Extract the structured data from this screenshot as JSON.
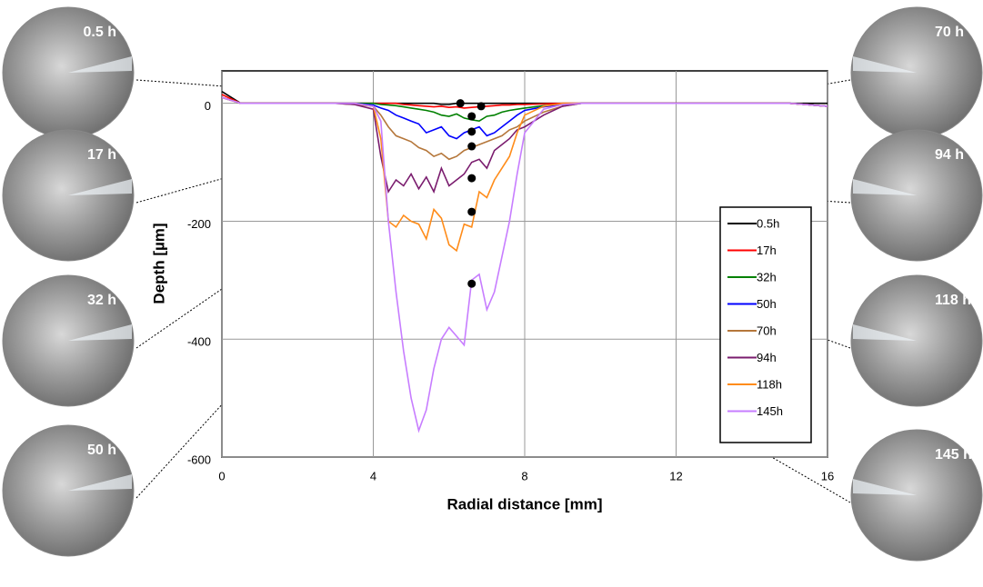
{
  "chart_data": {
    "type": "line",
    "xlabel": "Radial distance [mm]",
    "ylabel": "Depth [µm]",
    "xlim": [
      0,
      16
    ],
    "xticks": [
      0,
      4,
      8,
      12,
      16
    ],
    "ylim": [
      -600,
      55
    ],
    "yticks": [
      -600,
      -400,
      -200,
      0
    ],
    "grid": true,
    "legend": "right",
    "x": [
      0,
      0.5,
      1,
      2,
      3,
      3.5,
      4,
      4.2,
      4.4,
      4.6,
      4.8,
      5,
      5.2,
      5.4,
      5.6,
      5.8,
      6,
      6.2,
      6.4,
      6.6,
      6.8,
      7,
      7.2,
      7.4,
      7.6,
      7.8,
      8,
      8.5,
      9,
      9.5,
      10,
      11,
      12,
      13,
      14,
      15,
      16
    ],
    "series": [
      {
        "name": "0.5h",
        "color": "#000000",
        "values": [
          20,
          0,
          0,
          0,
          0,
          0,
          0,
          0,
          0,
          0,
          0,
          0,
          0,
          0,
          0,
          -2,
          -2,
          0,
          0,
          0,
          0,
          0,
          0,
          0,
          0,
          0,
          0,
          0,
          0,
          0,
          0,
          0,
          0,
          0,
          0,
          0,
          0
        ]
      },
      {
        "name": "17h",
        "color": "#ff0000",
        "values": [
          15,
          0,
          0,
          0,
          0,
          0,
          0,
          0,
          0,
          0,
          -2,
          -3,
          -4,
          -5,
          -6,
          -5,
          -7,
          -6,
          -8,
          -7,
          -6,
          -5,
          -4,
          -3,
          -3,
          -2,
          -2,
          -1,
          0,
          0,
          0,
          0,
          0,
          0,
          0,
          0,
          -5
        ]
      },
      {
        "name": "32h",
        "color": "#008000",
        "values": [
          10,
          0,
          0,
          0,
          0,
          0,
          0,
          -2,
          -3,
          -4,
          -6,
          -8,
          -10,
          -12,
          -15,
          -20,
          -22,
          -18,
          -25,
          -28,
          -30,
          -22,
          -20,
          -15,
          -12,
          -10,
          -8,
          -4,
          -2,
          0,
          0,
          0,
          0,
          0,
          0,
          0,
          -5
        ]
      },
      {
        "name": "50h",
        "color": "#0000ff",
        "values": [
          10,
          0,
          0,
          0,
          0,
          0,
          -3,
          -8,
          -12,
          -20,
          -25,
          -30,
          -35,
          -50,
          -45,
          -40,
          -55,
          -60,
          -50,
          -45,
          -40,
          -55,
          -50,
          -40,
          -30,
          -20,
          -12,
          -6,
          -2,
          0,
          0,
          0,
          0,
          0,
          0,
          0,
          -5
        ]
      },
      {
        "name": "70h",
        "color": "#b5773b",
        "values": [
          10,
          0,
          0,
          0,
          0,
          -2,
          -5,
          -20,
          -40,
          -55,
          -60,
          -65,
          -75,
          -80,
          -90,
          -85,
          -95,
          -90,
          -80,
          -75,
          -70,
          -65,
          -60,
          -55,
          -45,
          -40,
          -30,
          -15,
          -5,
          0,
          0,
          0,
          0,
          0,
          0,
          0,
          -5
        ]
      },
      {
        "name": "94h",
        "color": "#7a1c6e",
        "values": [
          10,
          0,
          0,
          0,
          0,
          -2,
          -10,
          -90,
          -150,
          -130,
          -140,
          -120,
          -145,
          -125,
          -150,
          -110,
          -140,
          -130,
          -120,
          -100,
          -95,
          -110,
          -80,
          -70,
          -60,
          -45,
          -40,
          -20,
          -5,
          0,
          0,
          0,
          0,
          0,
          0,
          0,
          -5
        ]
      },
      {
        "name": "118h",
        "color": "#ff8c1a",
        "values": [
          10,
          0,
          0,
          0,
          0,
          0,
          -5,
          -60,
          -200,
          -210,
          -190,
          -200,
          -205,
          -230,
          -180,
          -195,
          -240,
          -250,
          -205,
          -210,
          -150,
          -160,
          -130,
          -110,
          -90,
          -50,
          -20,
          -5,
          0,
          0,
          0,
          0,
          0,
          0,
          0,
          0,
          -5
        ]
      },
      {
        "name": "145h",
        "color": "#c77dff",
        "values": [
          10,
          0,
          0,
          0,
          0,
          0,
          -5,
          -30,
          -200,
          -320,
          -420,
          -500,
          -555,
          -520,
          -450,
          -400,
          -380,
          -395,
          -410,
          -300,
          -290,
          -350,
          -320,
          -260,
          -200,
          -120,
          -50,
          -10,
          -2,
          0,
          0,
          0,
          0,
          0,
          0,
          0,
          -5
        ]
      }
    ],
    "markers": {
      "x": [
        6.3,
        6.85,
        6.6,
        6.6,
        6.6,
        6.6,
        6.6,
        6.6
      ],
      "y": [
        0,
        -5,
        -22,
        -48,
        -73,
        -127,
        -184,
        -306
      ]
    }
  },
  "photos": {
    "left": [
      "0.5 h",
      "17 h",
      "32 h",
      "50 h"
    ],
    "right": [
      "70 h",
      "94 h",
      "118 h",
      "145 h"
    ]
  }
}
